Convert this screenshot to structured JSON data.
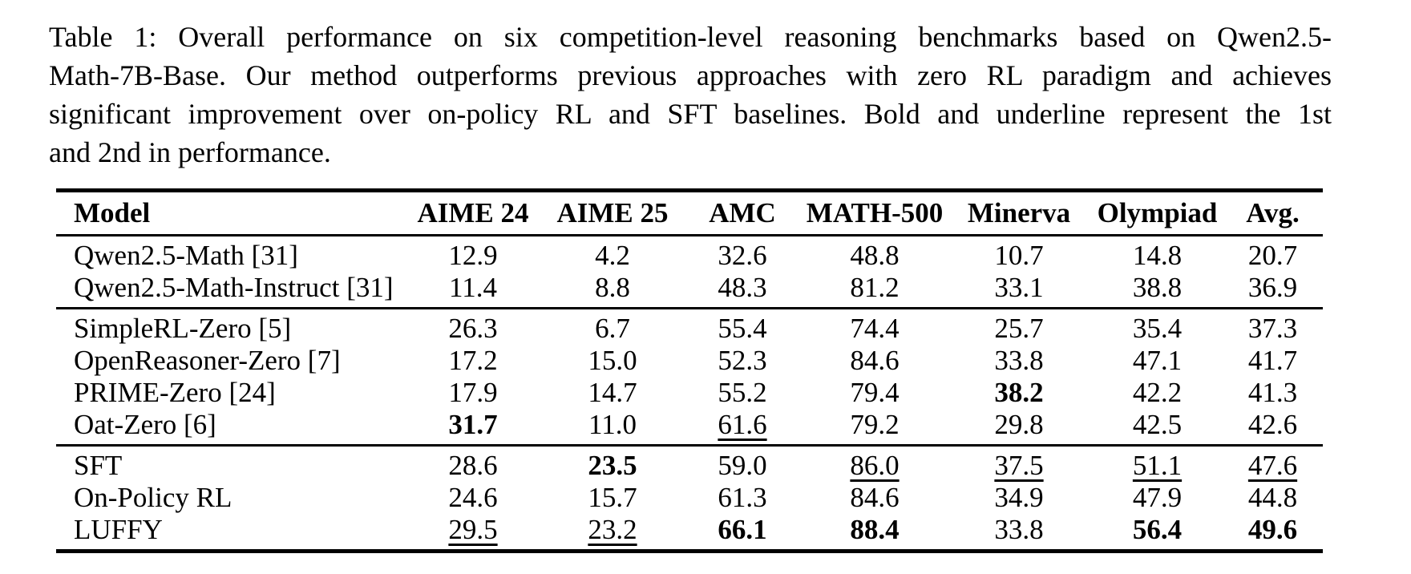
{
  "caption": {
    "lines": [
      "Table 1: Overall performance on six competition-level reasoning benchmarks based on Qwen2.5-",
      "Math-7B-Base. Our method outperforms previous approaches with zero RL paradigm and achieves",
      "significant improvement over on-policy RL and SFT baselines. Bold and underline represent the 1st",
      "and 2nd in performance."
    ]
  },
  "table": {
    "columns": [
      "Model",
      "AIME 24",
      "AIME 25",
      "AMC",
      "MATH-500",
      "Minerva",
      "Olympiad",
      "Avg."
    ],
    "groups": [
      {
        "rows": [
          {
            "model": "Qwen2.5-Math [31]",
            "cells": [
              {
                "v": "12.9"
              },
              {
                "v": "4.2"
              },
              {
                "v": "32.6"
              },
              {
                "v": "48.8"
              },
              {
                "v": "10.7"
              },
              {
                "v": "14.8"
              },
              {
                "v": "20.7"
              }
            ]
          },
          {
            "model": "Qwen2.5-Math-Instruct [31]",
            "cells": [
              {
                "v": "11.4"
              },
              {
                "v": "8.8"
              },
              {
                "v": "48.3"
              },
              {
                "v": "81.2"
              },
              {
                "v": "33.1"
              },
              {
                "v": "38.8"
              },
              {
                "v": "36.9"
              }
            ]
          }
        ]
      },
      {
        "rows": [
          {
            "model": "SimpleRL-Zero [5]",
            "cells": [
              {
                "v": "26.3"
              },
              {
                "v": "6.7"
              },
              {
                "v": "55.4"
              },
              {
                "v": "74.4"
              },
              {
                "v": "25.7"
              },
              {
                "v": "35.4"
              },
              {
                "v": "37.3"
              }
            ]
          },
          {
            "model": "OpenReasoner-Zero [7]",
            "cells": [
              {
                "v": "17.2"
              },
              {
                "v": "15.0"
              },
              {
                "v": "52.3"
              },
              {
                "v": "84.6"
              },
              {
                "v": "33.8"
              },
              {
                "v": "47.1"
              },
              {
                "v": "41.7"
              }
            ]
          },
          {
            "model": "PRIME-Zero [24]",
            "cells": [
              {
                "v": "17.9"
              },
              {
                "v": "14.7"
              },
              {
                "v": "55.2"
              },
              {
                "v": "79.4"
              },
              {
                "v": "38.2",
                "b": true
              },
              {
                "v": "42.2"
              },
              {
                "v": "41.3"
              }
            ]
          },
          {
            "model": "Oat-Zero [6]",
            "cells": [
              {
                "v": "31.7",
                "b": true
              },
              {
                "v": "11.0"
              },
              {
                "v": "61.6",
                "u": true
              },
              {
                "v": "79.2"
              },
              {
                "v": "29.8"
              },
              {
                "v": "42.5"
              },
              {
                "v": "42.6"
              }
            ]
          }
        ]
      },
      {
        "rows": [
          {
            "model": "SFT",
            "cells": [
              {
                "v": "28.6"
              },
              {
                "v": "23.5",
                "b": true
              },
              {
                "v": "59.0"
              },
              {
                "v": "86.0",
                "u": true
              },
              {
                "v": "37.5",
                "u": true
              },
              {
                "v": "51.1",
                "u": true
              },
              {
                "v": "47.6",
                "u": true
              }
            ]
          },
          {
            "model": "On-Policy RL",
            "cells": [
              {
                "v": "24.6"
              },
              {
                "v": "15.7"
              },
              {
                "v": "61.3"
              },
              {
                "v": "84.6"
              },
              {
                "v": "34.9"
              },
              {
                "v": "47.9"
              },
              {
                "v": "44.8"
              }
            ]
          },
          {
            "model": "LUFFY",
            "cells": [
              {
                "v": "29.5",
                "u": true
              },
              {
                "v": "23.2",
                "u": true
              },
              {
                "v": "66.1",
                "b": true
              },
              {
                "v": "88.4",
                "b": true
              },
              {
                "v": "33.8"
              },
              {
                "v": "56.4",
                "b": true
              },
              {
                "v": "49.6",
                "b": true
              }
            ]
          }
        ]
      }
    ]
  }
}
